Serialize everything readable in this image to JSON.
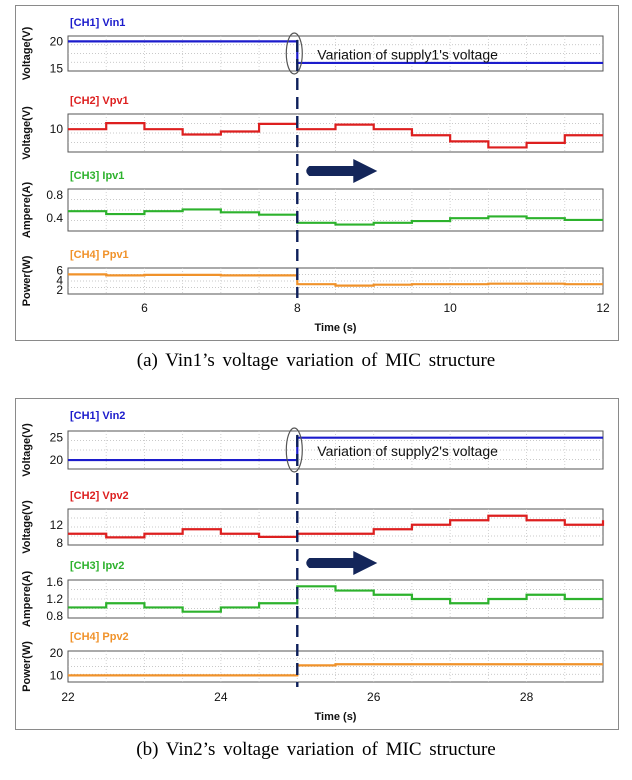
{
  "chart_data": [
    {
      "type": "line",
      "caption": "(a) Vin1’s voltage variation of MIC structure",
      "xlabel": "Time (s)",
      "xlim": [
        5,
        12
      ],
      "xticks": [
        6,
        8,
        10,
        12
      ],
      "event_x": 8,
      "annotation": "Variation of supply1's voltage",
      "channels": [
        {
          "name": "[CH1] Vin1",
          "ylabel": "Voltage(V)",
          "ylim": [
            14.5,
            21
          ],
          "yticks": [
            15,
            20
          ],
          "color": "#1c1ccc",
          "x": [
            5,
            8,
            8,
            12
          ],
          "y": [
            20,
            20,
            16,
            16
          ]
        },
        {
          "name": "[CH2] Vpv1",
          "ylabel": "Voltage(V)",
          "ylim": [
            7,
            12
          ],
          "yticks": [
            10
          ],
          "color": "#dd1f1f",
          "x": [
            5,
            5.5,
            6,
            6.5,
            7,
            7.5,
            8,
            8.5,
            9,
            9.5,
            10,
            10.5,
            11,
            11.5,
            12
          ],
          "y": [
            10,
            10.8,
            10,
            9.3,
            9.7,
            10.7,
            10,
            10.6,
            10,
            9.2,
            8.4,
            7.6,
            8.2,
            9.2,
            9.2
          ]
        },
        {
          "name": "[CH3] Ipv1",
          "ylabel": "Ampere(A)",
          "ylim": [
            0.18,
            0.9
          ],
          "yticks": [
            0.4,
            0.8
          ],
          "color": "#2db22d",
          "x": [
            5,
            5.5,
            6,
            6.5,
            7,
            7.5,
            8,
            8.5,
            9,
            9.5,
            10,
            10.5,
            11,
            11.5,
            12
          ],
          "y": [
            0.52,
            0.47,
            0.52,
            0.55,
            0.5,
            0.46,
            0.32,
            0.29,
            0.32,
            0.35,
            0.4,
            0.43,
            0.4,
            0.37,
            0.37
          ]
        },
        {
          "name": "[CH4] Ppv1",
          "ylabel": "Power(W)",
          "ylim": [
            1.2,
            6.5
          ],
          "yticks": [
            2,
            4,
            6
          ],
          "color": "#f0922a",
          "x": [
            5,
            5.5,
            6,
            6.5,
            7,
            7.5,
            8,
            8.5,
            9,
            9.5,
            10,
            10.5,
            11,
            11.5,
            12
          ],
          "y": [
            5.2,
            5.0,
            5.1,
            5.1,
            5.0,
            5.0,
            3.2,
            2.9,
            3.1,
            3.2,
            3.2,
            3.3,
            3.3,
            3.2,
            3.2
          ]
        }
      ]
    },
    {
      "type": "line",
      "caption": "(b) Vin2’s voltage variation of MIC structure",
      "xlabel": "Time (s)",
      "xlim": [
        22,
        29
      ],
      "xticks": [
        22,
        24,
        26,
        28
      ],
      "event_x": 25,
      "annotation": "Variation of supply2's voltage",
      "channels": [
        {
          "name": "[CH1] Vin2",
          "ylabel": "Voltage(V)",
          "ylim": [
            18,
            26.5
          ],
          "yticks": [
            20,
            25
          ],
          "color": "#1c1ccc",
          "x": [
            22,
            25,
            25,
            29
          ],
          "y": [
            20,
            20,
            25,
            25
          ]
        },
        {
          "name": "[CH2] Vpv2",
          "ylabel": "Voltage(V)",
          "ylim": [
            7.5,
            15.5
          ],
          "yticks": [
            8,
            12
          ],
          "color": "#dd1f1f",
          "x": [
            22,
            22.5,
            23,
            23.5,
            24,
            24.5,
            25,
            25.5,
            26,
            26.5,
            27,
            27.5,
            28,
            28.5,
            29
          ],
          "y": [
            10,
            9.2,
            10,
            11,
            10,
            9.3,
            10,
            10,
            11,
            12,
            13,
            14,
            13,
            12,
            13
          ]
        },
        {
          "name": "[CH3] Ipv2",
          "ylabel": "Ampere(A)",
          "ylim": [
            0.75,
            1.65
          ],
          "yticks": [
            0.8,
            1.2,
            1.6
          ],
          "color": "#2db22d",
          "x": [
            22,
            22.5,
            23,
            23.5,
            24,
            24.5,
            25,
            25.5,
            26,
            26.5,
            27,
            27.5,
            28,
            28.5,
            29
          ],
          "y": [
            1.0,
            1.1,
            1.0,
            0.9,
            1.0,
            1.1,
            1.5,
            1.4,
            1.3,
            1.2,
            1.1,
            1.2,
            1.3,
            1.2,
            1.2
          ]
        },
        {
          "name": "[CH4] Ppv2",
          "ylabel": "Power(W)",
          "ylim": [
            7,
            21
          ],
          "yticks": [
            10,
            20
          ],
          "color": "#f0922a",
          "x": [
            22,
            22.5,
            23,
            23.5,
            24,
            24.5,
            25,
            25.5,
            26,
            26.5,
            27,
            27.5,
            28,
            28.5,
            29
          ],
          "y": [
            10,
            10,
            10,
            10,
            10,
            10,
            14.5,
            15,
            15,
            15,
            15,
            15,
            15,
            15,
            15
          ]
        }
      ]
    }
  ]
}
